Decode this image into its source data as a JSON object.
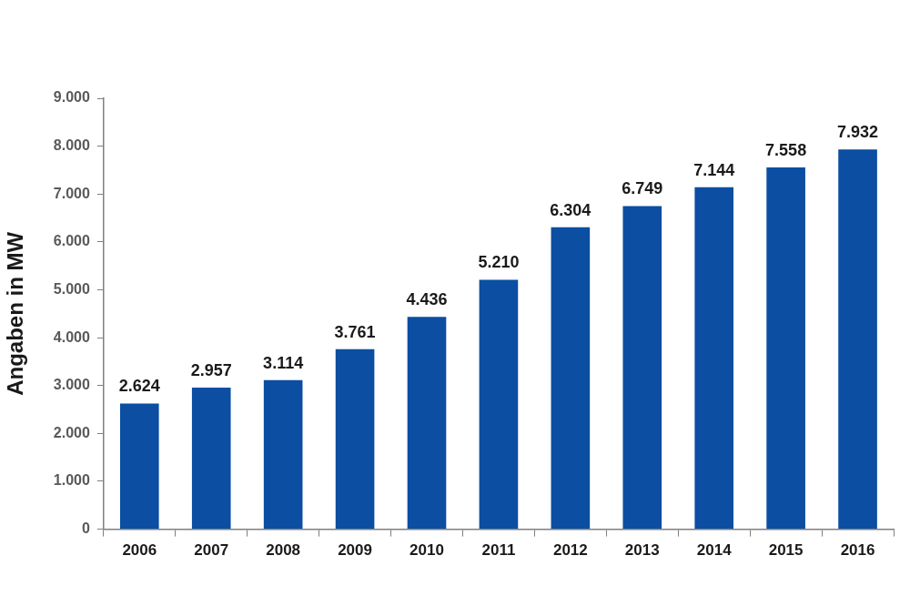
{
  "chart_data": {
    "type": "bar",
    "y_label": "Angaben in MW",
    "categories": [
      "2006",
      "2007",
      "2008",
      "2009",
      "2010",
      "2011",
      "2012",
      "2013",
      "2014",
      "2015",
      "2016"
    ],
    "values": [
      2624,
      2957,
      3114,
      3761,
      4436,
      5210,
      6304,
      6749,
      7144,
      7558,
      7932
    ],
    "value_labels": [
      "2.624",
      "2.957",
      "3.114",
      "3.761",
      "4.436",
      "5.210",
      "6.304",
      "6.749",
      "7.144",
      "7.558",
      "7.932"
    ],
    "color": "#0b4ea2",
    "ylim": [
      0,
      9000
    ],
    "yticks": [
      0,
      {
        "value": 1000,
        "label": "1.000"
      },
      {
        "value": 2000,
        "label": "2.000"
      },
      {
        "value": 3000,
        "label": "3.000"
      },
      {
        "value": 4000,
        "label": "4.000"
      },
      {
        "value": 5000,
        "label": "5.000"
      },
      {
        "value": 6000,
        "label": "6.000"
      },
      {
        "value": 7000,
        "label": "7.000"
      },
      {
        "value": 8000,
        "label": "8.000"
      },
      {
        "value": 9000,
        "label": "9.000"
      }
    ],
    "grid": false,
    "data_labels": true
  }
}
